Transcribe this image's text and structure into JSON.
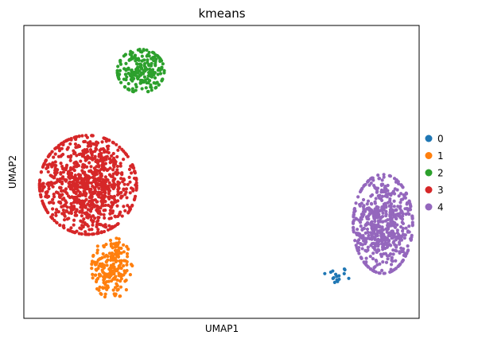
{
  "chart_data": {
    "type": "scatter",
    "title": "kmeans",
    "xlabel": "UMAP1",
    "ylabel": "UMAP2",
    "xticks": [],
    "yticks": [],
    "grid": false,
    "legend_placement": "right, outside plot",
    "xlim": [
      -6,
      18
    ],
    "ylim": [
      -6,
      12
    ],
    "series": [
      {
        "name": "0",
        "color": "#1f77b4",
        "clusters": [
          {
            "center": [
              12.9,
              -3.4
            ],
            "spread": [
              0.45,
              0.3
            ],
            "count": 16
          }
        ]
      },
      {
        "name": "1",
        "color": "#ff7f0e",
        "clusters": [
          {
            "center": [
              -0.65,
              -2.9
            ],
            "spread": [
              0.65,
              1.0
            ],
            "count": 210
          }
        ]
      },
      {
        "name": "2",
        "color": "#2ca02c",
        "clusters": [
          {
            "center": [
              1.1,
              9.2
            ],
            "spread": [
              0.75,
              0.7
            ],
            "count": 230
          }
        ]
      },
      {
        "name": "3",
        "color": "#d62728",
        "clusters": [
          {
            "center": [
              -2.1,
              2.2
            ],
            "spread": [
              1.55,
              1.6
            ],
            "count": 950
          }
        ]
      },
      {
        "name": "4",
        "color": "#9467bd",
        "clusters": [
          {
            "center": [
              15.8,
              -0.2
            ],
            "spread": [
              0.95,
              1.6
            ],
            "count": 620
          }
        ]
      }
    ]
  }
}
